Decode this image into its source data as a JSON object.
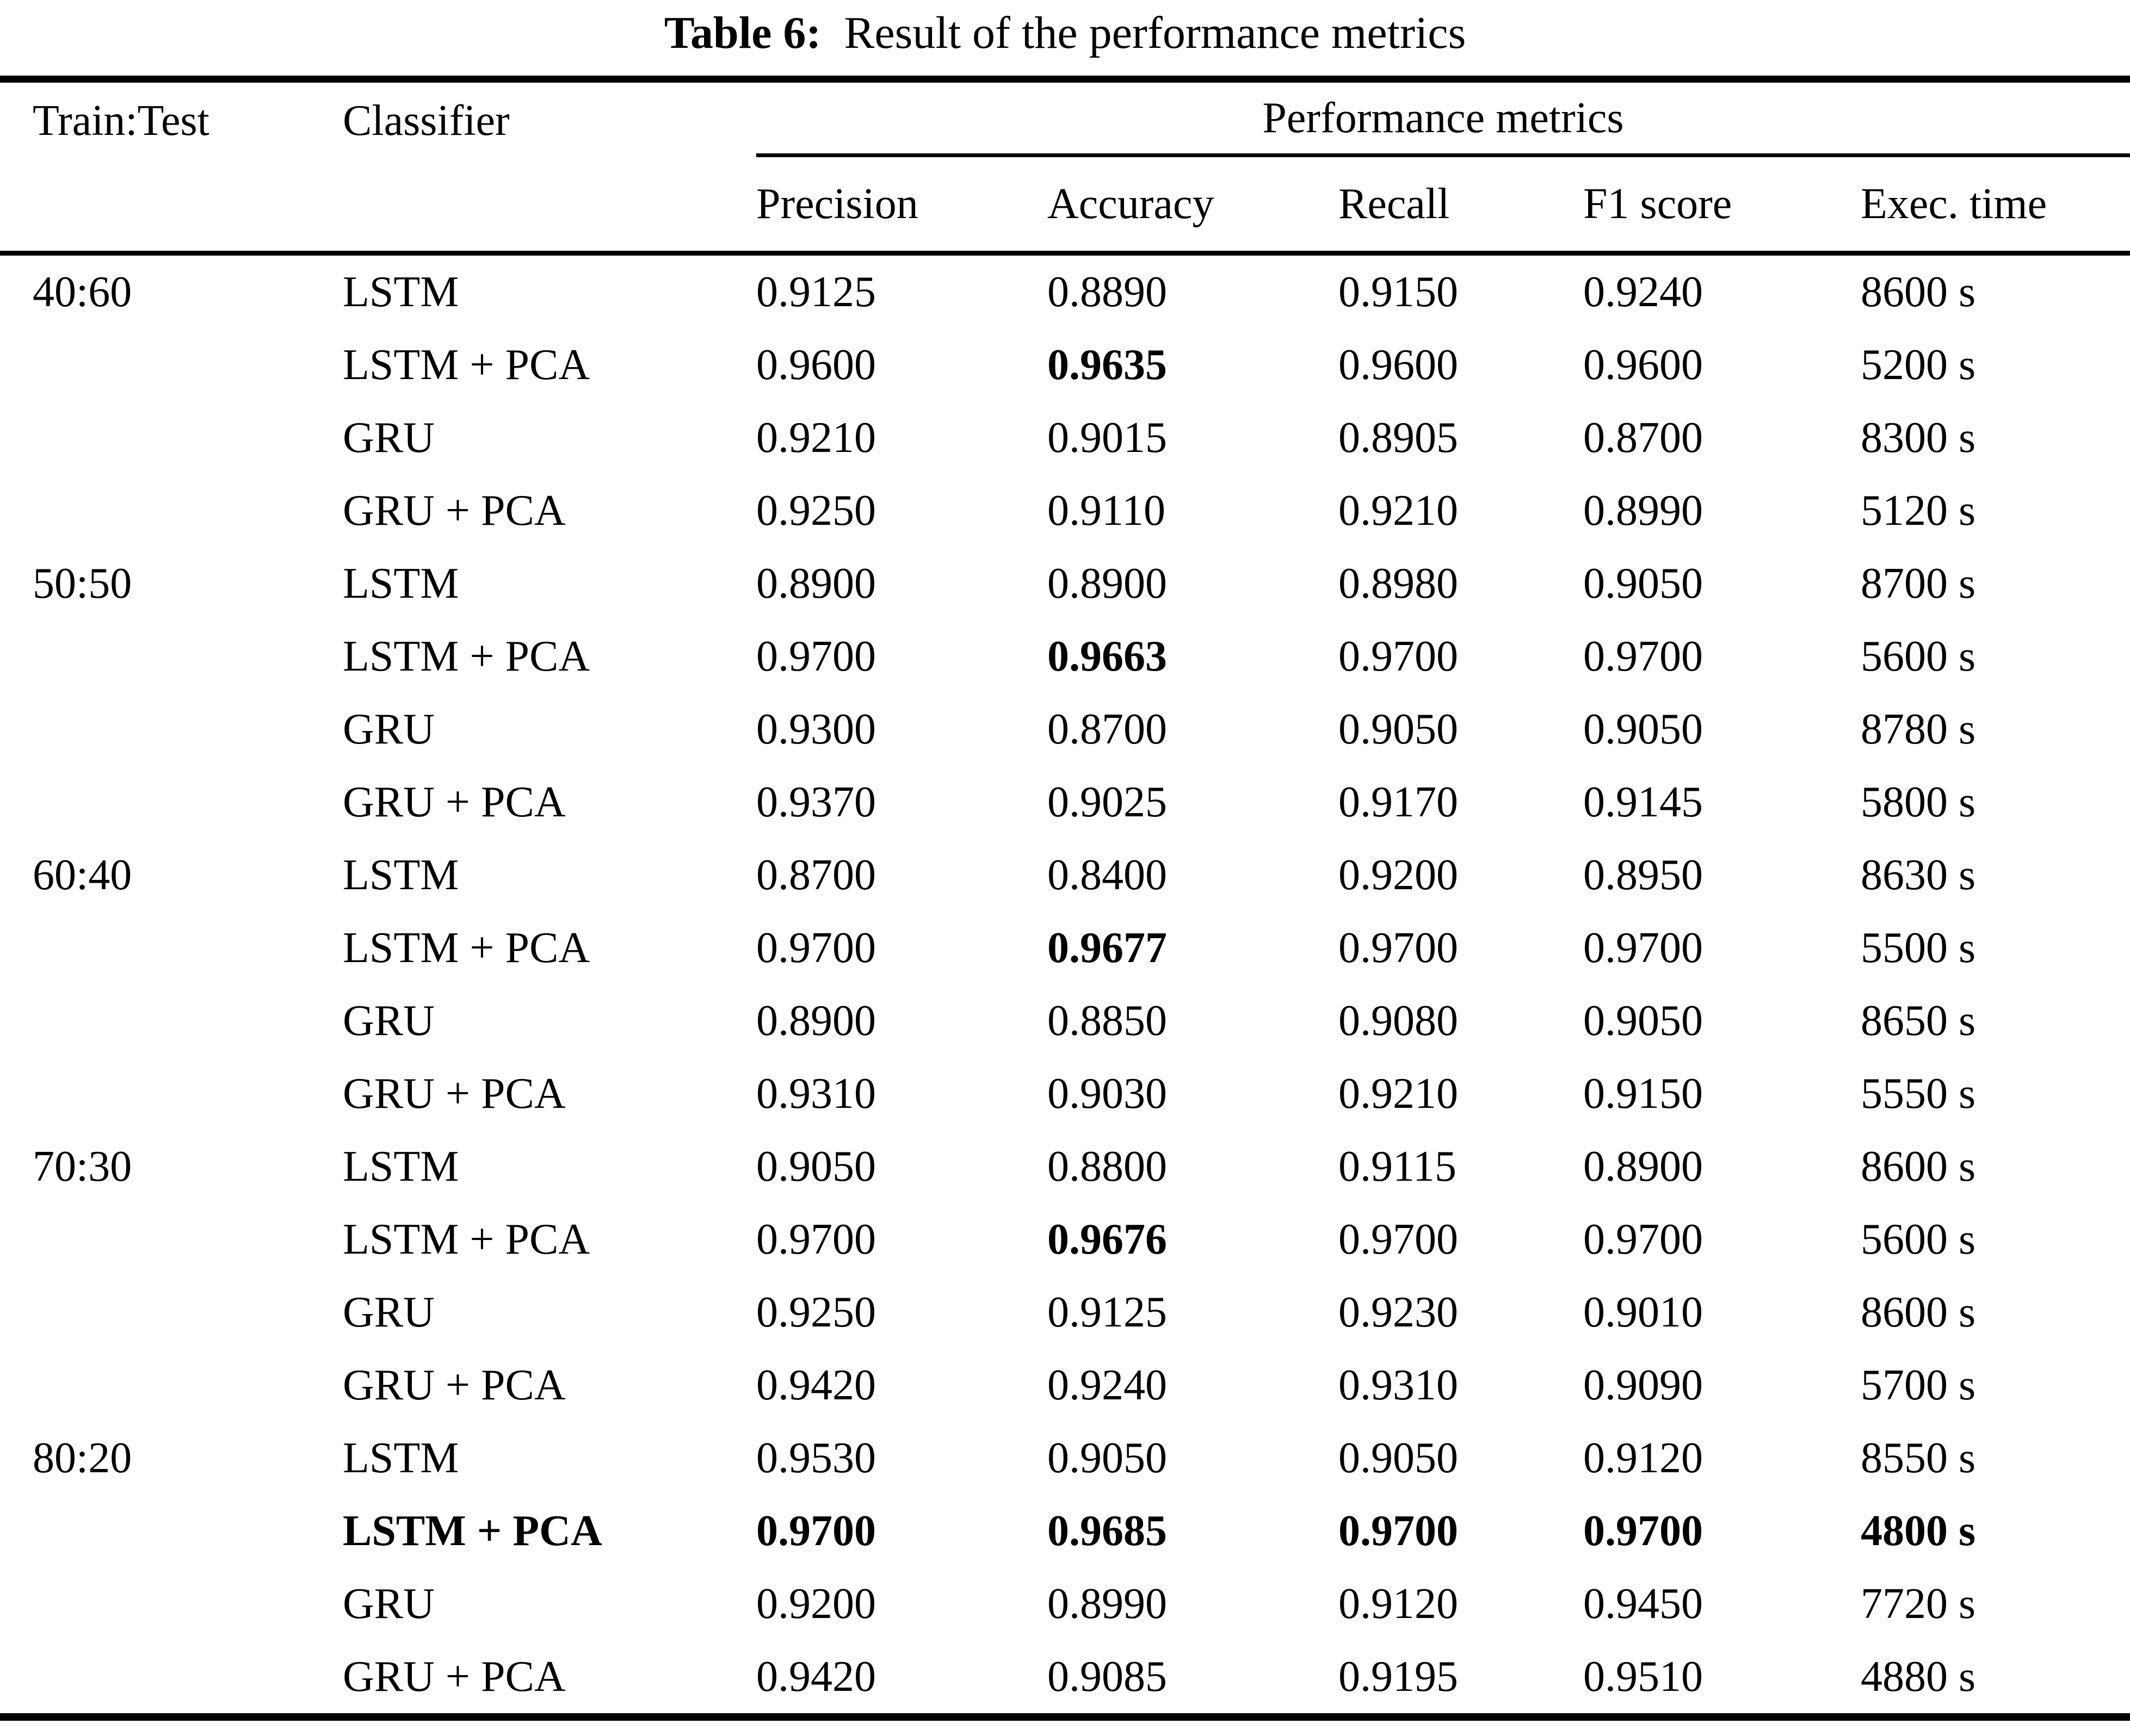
{
  "page": {
    "background_color": "#ffffff",
    "text_color": "#000000"
  },
  "caption": {
    "label": "Table 6:",
    "text": "Result of the performance metrics"
  },
  "table": {
    "headers": {
      "train_test": "Train:Test",
      "classifier": "Classifier",
      "metrics_group": "Performance metrics",
      "precision": "Precision",
      "accuracy": "Accuracy",
      "recall": "Recall",
      "f1": "F1 score",
      "exec_time": "Exec. time"
    },
    "rows": [
      {
        "train_test": "40:60",
        "classifier": "LSTM",
        "precision": "0.9125",
        "accuracy": "0.8890",
        "recall": "0.9150",
        "f1": "0.9240",
        "exec_time": "8600 s",
        "bold": []
      },
      {
        "train_test": "",
        "classifier": "LSTM + PCA",
        "precision": "0.9600",
        "accuracy": "0.9635",
        "recall": "0.9600",
        "f1": "0.9600",
        "exec_time": "5200 s",
        "bold": [
          "accuracy"
        ]
      },
      {
        "train_test": "",
        "classifier": "GRU",
        "precision": "0.9210",
        "accuracy": "0.9015",
        "recall": "0.8905",
        "f1": "0.8700",
        "exec_time": "8300 s",
        "bold": []
      },
      {
        "train_test": "",
        "classifier": "GRU + PCA",
        "precision": "0.9250",
        "accuracy": "0.9110",
        "recall": "0.9210",
        "f1": "0.8990",
        "exec_time": "5120 s",
        "bold": []
      },
      {
        "train_test": "50:50",
        "classifier": "LSTM",
        "precision": "0.8900",
        "accuracy": "0.8900",
        "recall": "0.8980",
        "f1": "0.9050",
        "exec_time": "8700 s",
        "bold": []
      },
      {
        "train_test": "",
        "classifier": "LSTM + PCA",
        "precision": "0.9700",
        "accuracy": "0.9663",
        "recall": "0.9700",
        "f1": "0.9700",
        "exec_time": "5600 s",
        "bold": [
          "accuracy"
        ]
      },
      {
        "train_test": "",
        "classifier": "GRU",
        "precision": "0.9300",
        "accuracy": "0.8700",
        "recall": "0.9050",
        "f1": "0.9050",
        "exec_time": "8780 s",
        "bold": []
      },
      {
        "train_test": "",
        "classifier": "GRU + PCA",
        "precision": "0.9370",
        "accuracy": "0.9025",
        "recall": "0.9170",
        "f1": "0.9145",
        "exec_time": "5800 s",
        "bold": []
      },
      {
        "train_test": "60:40",
        "classifier": "LSTM",
        "precision": "0.8700",
        "accuracy": "0.8400",
        "recall": "0.9200",
        "f1": "0.8950",
        "exec_time": "8630 s",
        "bold": []
      },
      {
        "train_test": "",
        "classifier": "LSTM + PCA",
        "precision": "0.9700",
        "accuracy": "0.9677",
        "recall": "0.9700",
        "f1": "0.9700",
        "exec_time": "5500 s",
        "bold": [
          "accuracy"
        ]
      },
      {
        "train_test": "",
        "classifier": "GRU",
        "precision": "0.8900",
        "accuracy": "0.8850",
        "recall": "0.9080",
        "f1": "0.9050",
        "exec_time": "8650 s",
        "bold": []
      },
      {
        "train_test": "",
        "classifier": "GRU + PCA",
        "precision": "0.9310",
        "accuracy": "0.9030",
        "recall": "0.9210",
        "f1": "0.9150",
        "exec_time": "5550 s",
        "bold": []
      },
      {
        "train_test": "70:30",
        "classifier": "LSTM",
        "precision": "0.9050",
        "accuracy": "0.8800",
        "recall": "0.9115",
        "f1": "0.8900",
        "exec_time": "8600 s",
        "bold": []
      },
      {
        "train_test": "",
        "classifier": "LSTM + PCA",
        "precision": "0.9700",
        "accuracy": "0.9676",
        "recall": "0.9700",
        "f1": "0.9700",
        "exec_time": "5600 s",
        "bold": [
          "accuracy"
        ]
      },
      {
        "train_test": "",
        "classifier": "GRU",
        "precision": "0.9250",
        "accuracy": "0.9125",
        "recall": "0.9230",
        "f1": "0.9010",
        "exec_time": "8600 s",
        "bold": []
      },
      {
        "train_test": "",
        "classifier": "GRU + PCA",
        "precision": "0.9420",
        "accuracy": "0.9240",
        "recall": "0.9310",
        "f1": "0.9090",
        "exec_time": "5700 s",
        "bold": []
      },
      {
        "train_test": "80:20",
        "classifier": "LSTM",
        "precision": "0.9530",
        "accuracy": "0.9050",
        "recall": "0.9050",
        "f1": "0.9120",
        "exec_time": "8550 s",
        "bold": []
      },
      {
        "train_test": "",
        "classifier": "LSTM + PCA",
        "precision": "0.9700",
        "accuracy": "0.9685",
        "recall": "0.9700",
        "f1": "0.9700",
        "exec_time": "4800 s",
        "bold": [
          "classifier",
          "precision",
          "accuracy",
          "recall",
          "f1",
          "exec_time"
        ]
      },
      {
        "train_test": "",
        "classifier": "GRU",
        "precision": "0.9200",
        "accuracy": "0.8990",
        "recall": "0.9120",
        "f1": "0.9450",
        "exec_time": "7720 s",
        "bold": []
      },
      {
        "train_test": "",
        "classifier": "GRU + PCA",
        "precision": "0.9420",
        "accuracy": "0.9085",
        "recall": "0.9195",
        "f1": "0.9510",
        "exec_time": "4880 s",
        "bold": []
      }
    ]
  }
}
